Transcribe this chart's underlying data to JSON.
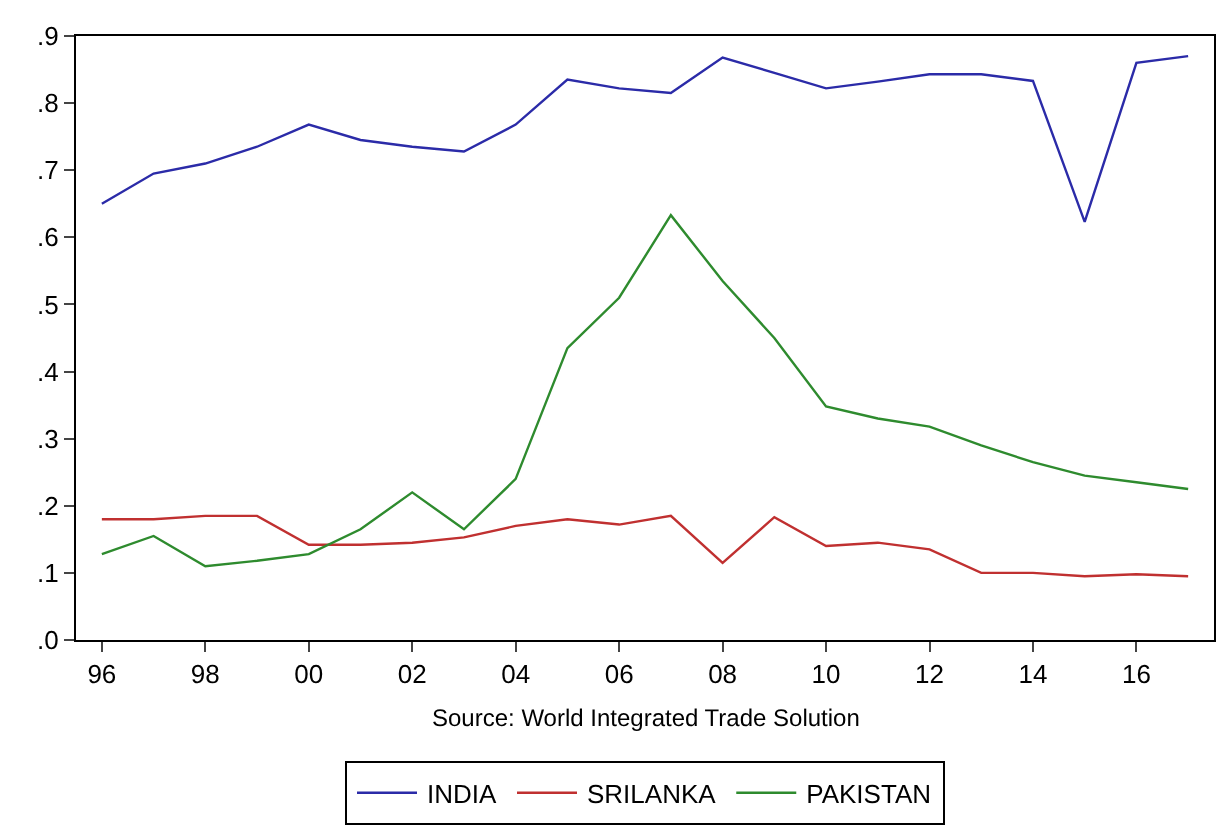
{
  "chart_data": {
    "type": "line",
    "x": [
      1996,
      1997,
      1998,
      1999,
      2000,
      2001,
      2002,
      2003,
      2004,
      2005,
      2006,
      2007,
      2008,
      2009,
      2010,
      2011,
      2012,
      2013,
      2014,
      2015,
      2016,
      2017
    ],
    "series": [
      {
        "name": "INDIA",
        "color": "#2b2ba8",
        "values": [
          0.65,
          0.695,
          0.71,
          0.735,
          0.768,
          0.745,
          0.735,
          0.728,
          0.768,
          0.835,
          0.822,
          0.815,
          0.868,
          0.845,
          0.822,
          0.832,
          0.843,
          0.843,
          0.833,
          0.623,
          0.86,
          0.87
        ]
      },
      {
        "name": "SRILANKA",
        "color": "#c03030",
        "values": [
          0.18,
          0.18,
          0.185,
          0.185,
          0.142,
          0.142,
          0.145,
          0.153,
          0.17,
          0.18,
          0.172,
          0.185,
          0.115,
          0.183,
          0.14,
          0.145,
          0.135,
          0.1,
          0.1,
          0.095,
          0.098,
          0.095
        ]
      },
      {
        "name": "PAKISTAN",
        "color": "#2e8b2e",
        "values": [
          0.128,
          0.155,
          0.11,
          0.118,
          0.128,
          0.165,
          0.22,
          0.165,
          0.24,
          0.435,
          0.51,
          0.633,
          0.535,
          0.45,
          0.348,
          0.33,
          0.318,
          0.29,
          0.265,
          0.245,
          0.235,
          0.225
        ]
      }
    ],
    "xlim": [
      1995.5,
      2017.5
    ],
    "xticks": [
      {
        "value": 1996,
        "label": "96"
      },
      {
        "value": 1998,
        "label": "98"
      },
      {
        "value": 2000,
        "label": "00"
      },
      {
        "value": 2002,
        "label": "02"
      },
      {
        "value": 2004,
        "label": "04"
      },
      {
        "value": 2006,
        "label": "06"
      },
      {
        "value": 2008,
        "label": "08"
      },
      {
        "value": 2010,
        "label": "10"
      },
      {
        "value": 2012,
        "label": "12"
      },
      {
        "value": 2014,
        "label": "14"
      },
      {
        "value": 2016,
        "label": "16"
      }
    ],
    "ylim": [
      0,
      0.9
    ],
    "yticks": [
      {
        "value": 0,
        "label": ".0"
      },
      {
        "value": 0.1,
        "label": ".1"
      },
      {
        "value": 0.2,
        "label": ".2"
      },
      {
        "value": 0.3,
        "label": ".3"
      },
      {
        "value": 0.4,
        "label": ".4"
      },
      {
        "value": 0.5,
        "label": ".5"
      },
      {
        "value": 0.6,
        "label": ".6"
      },
      {
        "value": 0.7,
        "label": ".7"
      },
      {
        "value": 0.8,
        "label": ".8"
      },
      {
        "value": 0.9,
        "label": ".9"
      }
    ],
    "annotations": [
      "Source: World Integrated Trade Solution"
    ],
    "legend": "bottom",
    "marker": "none",
    "line_style": "solid"
  }
}
